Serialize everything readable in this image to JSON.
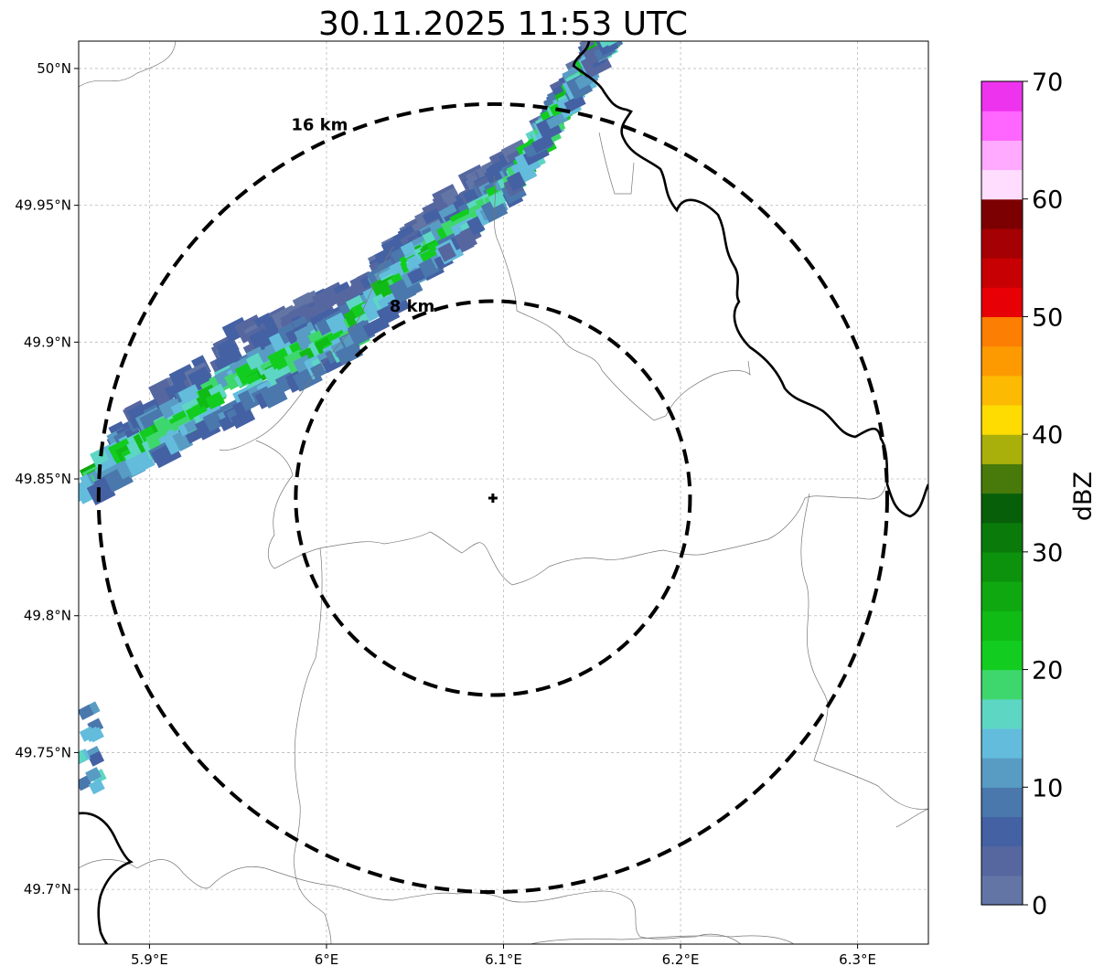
{
  "title": "30.11.2025 11:53 UTC",
  "map": {
    "lon_range": [
      5.86,
      6.34
    ],
    "lat_range": [
      49.68,
      50.01
    ],
    "x_ticks": [
      {
        "value": 5.9,
        "label": "5.9°E"
      },
      {
        "value": 6.0,
        "label": "6°E"
      },
      {
        "value": 6.1,
        "label": "6.1°E"
      },
      {
        "value": 6.2,
        "label": "6.2°E"
      },
      {
        "value": 6.3,
        "label": "6.3°E"
      }
    ],
    "y_ticks": [
      {
        "value": 50.0,
        "label": "50°N"
      },
      {
        "value": 49.95,
        "label": "49.95°N"
      },
      {
        "value": 49.9,
        "label": "49.9°N"
      },
      {
        "value": 49.85,
        "label": "49.85°N"
      },
      {
        "value": 49.8,
        "label": "49.8°N"
      },
      {
        "value": 49.75,
        "label": "49.75°N"
      },
      {
        "value": 49.7,
        "label": "49.7°N"
      }
    ],
    "radar_site": {
      "lon": 6.094,
      "lat": 49.843
    },
    "rings": [
      {
        "radius_km": 8,
        "label": "8 km"
      },
      {
        "radius_km": 16,
        "label": "16 km"
      }
    ],
    "echo_band": {
      "lower_edge": [
        [
          5.86,
          49.84
        ],
        [
          6.0,
          49.89
        ],
        [
          6.1,
          49.95
        ],
        [
          6.16,
          50.01
        ]
      ],
      "max_dbz": 26
    }
  },
  "colorbar": {
    "label": "dBZ",
    "min": 0,
    "max": 70,
    "ticks": [
      0,
      10,
      20,
      30,
      40,
      50,
      60,
      70
    ],
    "colors": [
      "#6275a5",
      "#5667a0",
      "#4461a4",
      "#4a77ac",
      "#589cc4",
      "#63bcdc",
      "#5dd6c4",
      "#3ed76d",
      "#12cd1f",
      "#11bb16",
      "#0fa810",
      "#0d920e",
      "#0a7b0b",
      "#075f09",
      "#477a0a",
      "#a9b00b",
      "#fedc02",
      "#fdba03",
      "#fd9a02",
      "#fc7e03",
      "#e70005",
      "#c70004",
      "#a50003",
      "#7c0002",
      "#ffddff",
      "#ffaaff",
      "#ff66ff",
      "#ee33ee"
    ]
  }
}
